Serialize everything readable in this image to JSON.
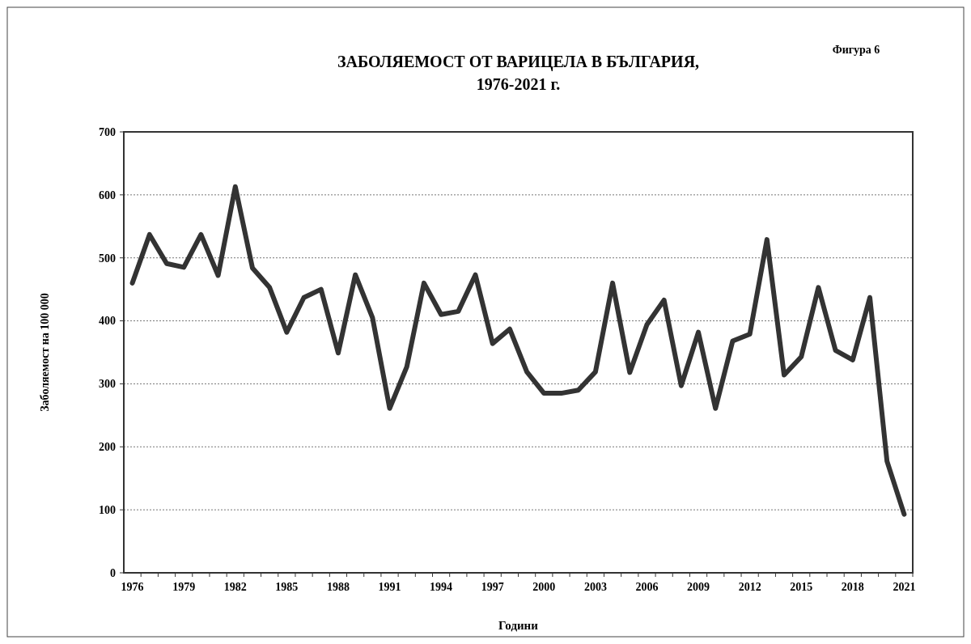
{
  "chart_data": {
    "type": "line",
    "title": "ЗАБОЛЯЕМОСТ ОТ ВАРИЦЕЛА В БЪЛГАРИЯ,\n1976-2021 г.",
    "xlabel": "Години",
    "ylabel": "Заболяемост на 100 000",
    "annotations": [
      "Фигура 6"
    ],
    "categories": [
      "1976",
      null,
      null,
      "1979",
      null,
      null,
      "1982",
      null,
      null,
      "1985",
      null,
      null,
      "1988",
      null,
      null,
      "1991",
      null,
      null,
      "1994",
      null,
      null,
      "1997",
      null,
      null,
      "2000",
      null,
      null,
      "2003",
      null,
      null,
      "2006",
      null,
      null,
      "2009",
      null,
      null,
      "2012",
      null,
      null,
      "2015",
      null,
      null,
      "2018",
      null,
      null,
      "2021"
    ],
    "series": [
      {
        "color": "#333333",
        "values": [
          460,
          537,
          491,
          485,
          537,
          472,
          613,
          484,
          453,
          382,
          437,
          450,
          349,
          473,
          405,
          261,
          327,
          460,
          410,
          415,
          473,
          364,
          387,
          319,
          285,
          285,
          290,
          319,
          460,
          318,
          394,
          433,
          297,
          382,
          261,
          368,
          379,
          529,
          314,
          343,
          453,
          353,
          338,
          437,
          177,
          93
        ]
      }
    ],
    "ylim": [
      0,
      700
    ],
    "yticks": [
      0,
      100,
      200,
      300,
      400,
      500,
      600,
      700
    ],
    "grid": "y",
    "marker": "none",
    "line_style": "solid"
  }
}
